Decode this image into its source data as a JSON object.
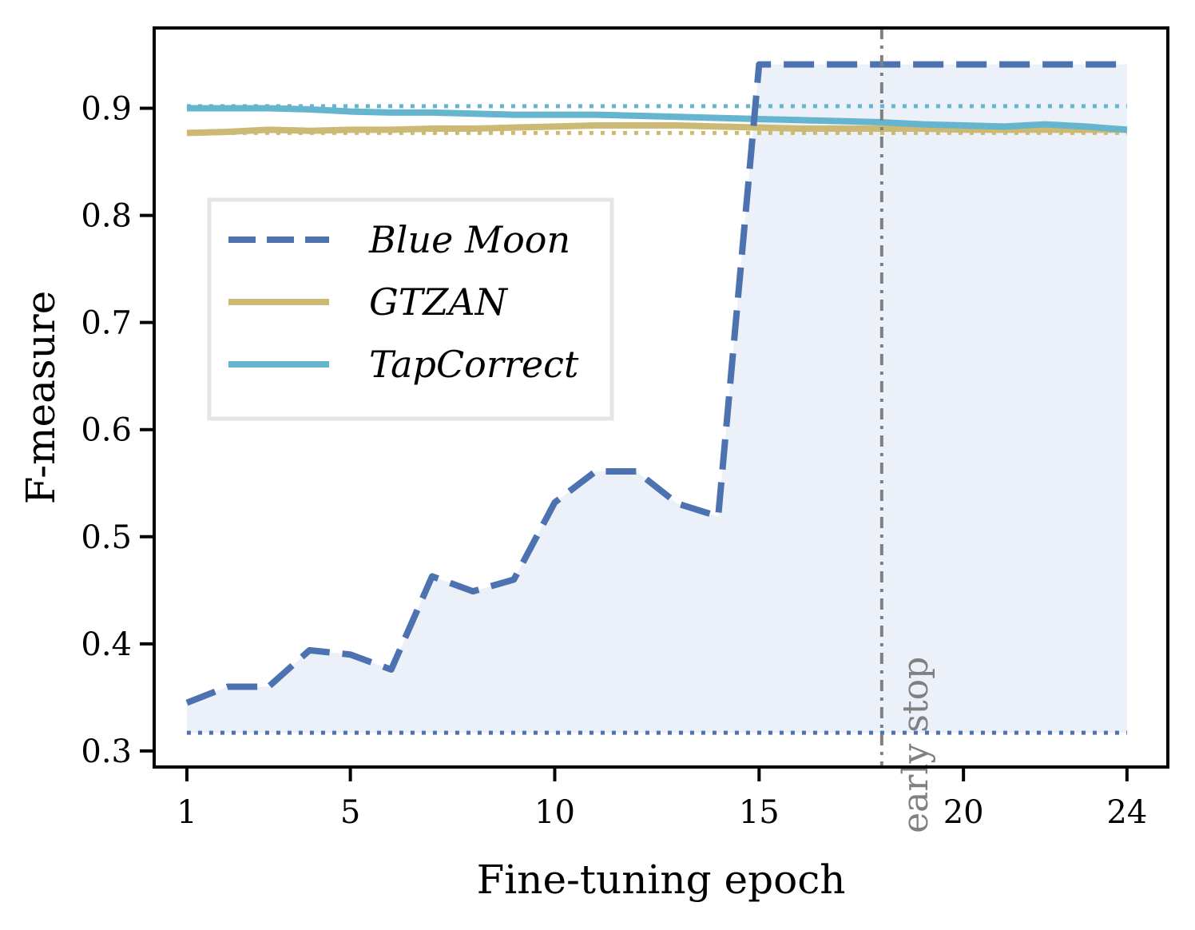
{
  "chart_data": {
    "type": "line",
    "xlabel": "Fine-tuning epoch",
    "ylabel": "F-measure",
    "xlim": [
      0.2,
      25.0
    ],
    "ylim": [
      0.285,
      0.975
    ],
    "xticks": [
      1,
      5,
      10,
      15,
      20,
      24
    ],
    "yticks": [
      0.3,
      0.4,
      0.5,
      0.6,
      0.7,
      0.8,
      0.9
    ],
    "x": [
      1,
      2,
      3,
      4,
      5,
      6,
      7,
      8,
      9,
      10,
      11,
      12,
      13,
      14,
      15,
      16,
      17,
      18,
      19,
      20,
      21,
      22,
      23,
      24
    ],
    "series": [
      {
        "name": "Blue Moon",
        "style": "dashed",
        "color": "#4C72B0",
        "fill": true,
        "fill_color": "#ECF0F8",
        "baseline": 0.317,
        "values": [
          0.345,
          0.36,
          0.36,
          0.394,
          0.39,
          0.376,
          0.463,
          0.449,
          0.46,
          0.532,
          0.561,
          0.561,
          0.531,
          0.519,
          0.941,
          0.941,
          0.941,
          0.941,
          0.941,
          0.941,
          0.941,
          0.941,
          0.941,
          0.941
        ]
      },
      {
        "name": "GTZAN",
        "style": "solid",
        "color": "#CCB974",
        "baseline": 0.877,
        "values": [
          0.877,
          0.878,
          0.88,
          0.879,
          0.88,
          0.88,
          0.881,
          0.881,
          0.882,
          0.883,
          0.884,
          0.884,
          0.884,
          0.883,
          0.882,
          0.881,
          0.881,
          0.881,
          0.881,
          0.88,
          0.88,
          0.88,
          0.88,
          0.88
        ]
      },
      {
        "name": "TapCorrect",
        "style": "solid",
        "color": "#64B5CD",
        "baseline": 0.902,
        "values": [
          0.9,
          0.9,
          0.9,
          0.899,
          0.897,
          0.896,
          0.896,
          0.895,
          0.894,
          0.894,
          0.894,
          0.893,
          0.892,
          0.891,
          0.89,
          0.889,
          0.888,
          0.887,
          0.885,
          0.884,
          0.883,
          0.885,
          0.883,
          0.88
        ]
      }
    ],
    "annotations": [
      {
        "text": "early stop",
        "x": 18,
        "line_style": "dashdot",
        "color": "#808080"
      }
    ],
    "legend": {
      "placement": "center-left",
      "entries": [
        "Blue Moon",
        "GTZAN",
        "TapCorrect"
      ]
    },
    "grid": false
  }
}
